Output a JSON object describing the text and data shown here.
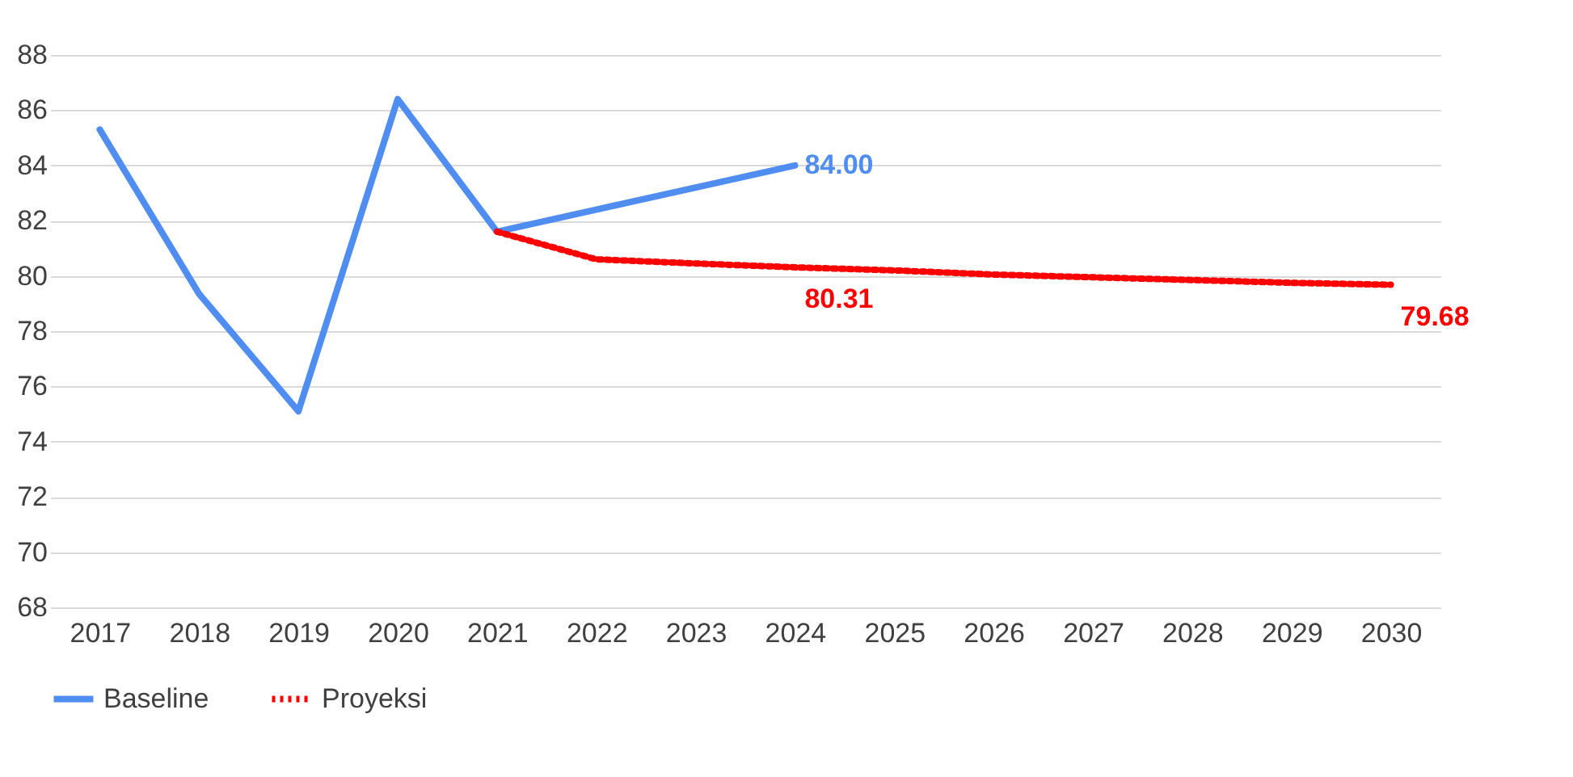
{
  "chart_data": {
    "type": "line",
    "categories": [
      "2017",
      "2018",
      "2019",
      "2020",
      "2021",
      "2022",
      "2023",
      "2024",
      "2025",
      "2026",
      "2027",
      "2028",
      "2029",
      "2030"
    ],
    "series": [
      {
        "name": "Baseline",
        "color": "#4f8ef0",
        "line_style": "solid",
        "values": [
          85.3,
          79.35,
          75.1,
          86.4,
          81.6,
          null,
          null,
          84.0,
          null,
          null,
          null,
          null,
          null,
          null
        ],
        "value_labels": [
          null,
          null,
          null,
          null,
          null,
          null,
          null,
          "84.00",
          null,
          null,
          null,
          null,
          null,
          null
        ]
      },
      {
        "name": "Proyeksi",
        "color": "#ff0000",
        "line_style": "dotted",
        "values": [
          null,
          null,
          null,
          null,
          81.6,
          80.6,
          80.45,
          80.31,
          80.2,
          80.05,
          79.95,
          79.85,
          79.75,
          79.68
        ],
        "value_labels": [
          null,
          null,
          null,
          null,
          null,
          null,
          null,
          "80.31",
          null,
          null,
          null,
          null,
          null,
          "79.68"
        ]
      }
    ],
    "ylim": [
      68,
      88
    ],
    "yticks": [
      68,
      70,
      72,
      74,
      76,
      78,
      80,
      82,
      84,
      86,
      88
    ],
    "grid": "y",
    "legend": "bottom"
  }
}
